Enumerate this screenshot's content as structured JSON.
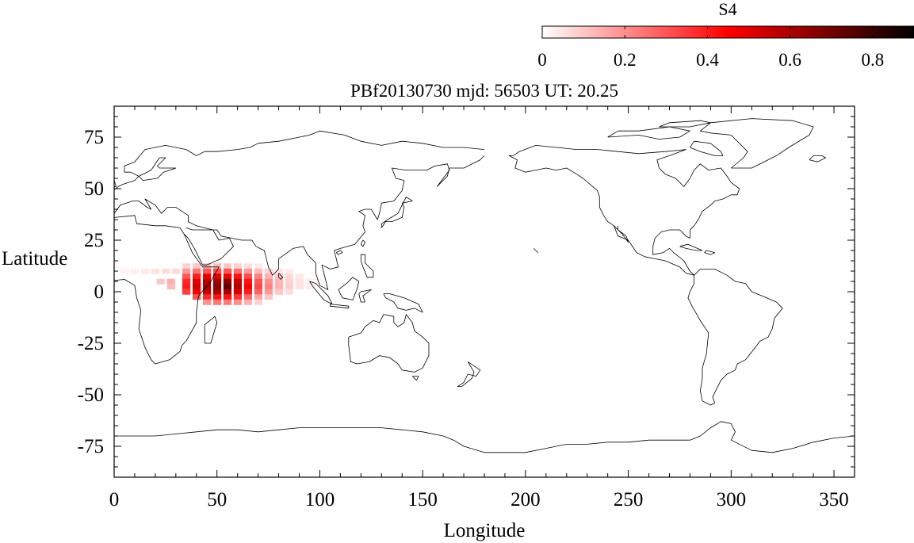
{
  "colorbar": {
    "label": "S4",
    "ticks": [
      "0",
      "0.2",
      "0.4",
      "0.6",
      "0.8"
    ],
    "tick_values": [
      0,
      0.2,
      0.4,
      0.6,
      0.8
    ],
    "range": [
      0,
      0.9
    ],
    "colors": [
      "#ffffff",
      "#ff0000",
      "#000000"
    ]
  },
  "plot": {
    "title": "PBf20130730  mjd: 56503  UT:  20.25",
    "xlabel": "Longitude",
    "ylabel": "Latitude",
    "coastline_color": "#000000"
  },
  "chart_data": {
    "type": "heatmap",
    "title": "PBf20130730  mjd: 56503  UT:  20.25",
    "xlabel": "Longitude",
    "ylabel": "Latitude",
    "xlim": [
      0,
      360
    ],
    "ylim": [
      -90,
      90
    ],
    "xticks": [
      0,
      50,
      100,
      150,
      200,
      250,
      300,
      350
    ],
    "xtick_labels": [
      "0",
      "50",
      "100",
      "150",
      "200",
      "250",
      "300",
      "350"
    ],
    "yticks": [
      75,
      50,
      25,
      0,
      -25,
      -50,
      -75
    ],
    "ytick_labels": [
      "75",
      "50",
      "25",
      "0",
      "-25",
      "-50",
      "-75"
    ],
    "colorbar_label": "S4",
    "cell_size_deg": [
      3.75,
      2.5
    ],
    "cells": [
      {
        "lon": 5,
        "lat": 10,
        "s4": 0.02
      },
      {
        "lon": 10,
        "lat": 10,
        "s4": 0.03
      },
      {
        "lon": 15,
        "lat": 10,
        "s4": 0.04
      },
      {
        "lon": 20,
        "lat": 10,
        "s4": 0.05
      },
      {
        "lon": 25,
        "lat": 10,
        "s4": 0.06
      },
      {
        "lon": 30,
        "lat": 10,
        "s4": 0.06
      },
      {
        "lon": 22.5,
        "lat": 5,
        "s4": 0.1
      },
      {
        "lon": 27.5,
        "lat": 5,
        "s4": 0.14
      },
      {
        "lon": 27.5,
        "lat": 2.5,
        "s4": 0.12
      },
      {
        "lon": 35,
        "lat": 12.5,
        "s4": 0.08
      },
      {
        "lon": 40,
        "lat": 12.5,
        "s4": 0.1
      },
      {
        "lon": 45,
        "lat": 12.5,
        "s4": 0.12
      },
      {
        "lon": 50,
        "lat": 12.5,
        "s4": 0.12
      },
      {
        "lon": 55,
        "lat": 12.5,
        "s4": 0.1
      },
      {
        "lon": 60,
        "lat": 12.5,
        "s4": 0.08
      },
      {
        "lon": 65,
        "lat": 12.5,
        "s4": 0.06
      },
      {
        "lon": 70,
        "lat": 12.5,
        "s4": 0.04
      },
      {
        "lon": 35,
        "lat": 10,
        "s4": 0.18
      },
      {
        "lon": 40,
        "lat": 10,
        "s4": 0.25
      },
      {
        "lon": 45,
        "lat": 10,
        "s4": 0.3
      },
      {
        "lon": 50,
        "lat": 10,
        "s4": 0.32
      },
      {
        "lon": 55,
        "lat": 10,
        "s4": 0.3
      },
      {
        "lon": 60,
        "lat": 10,
        "s4": 0.25
      },
      {
        "lon": 65,
        "lat": 10,
        "s4": 0.18
      },
      {
        "lon": 70,
        "lat": 10,
        "s4": 0.12
      },
      {
        "lon": 75,
        "lat": 10,
        "s4": 0.08
      },
      {
        "lon": 80,
        "lat": 10,
        "s4": 0.05
      },
      {
        "lon": 85,
        "lat": 10,
        "s4": 0.03
      },
      {
        "lon": 35,
        "lat": 7.5,
        "s4": 0.3
      },
      {
        "lon": 40,
        "lat": 7.5,
        "s4": 0.4
      },
      {
        "lon": 45,
        "lat": 7.5,
        "s4": 0.48
      },
      {
        "lon": 50,
        "lat": 7.5,
        "s4": 0.5
      },
      {
        "lon": 55,
        "lat": 7.5,
        "s4": 0.48
      },
      {
        "lon": 60,
        "lat": 7.5,
        "s4": 0.42
      },
      {
        "lon": 65,
        "lat": 7.5,
        "s4": 0.32
      },
      {
        "lon": 70,
        "lat": 7.5,
        "s4": 0.22
      },
      {
        "lon": 75,
        "lat": 7.5,
        "s4": 0.14
      },
      {
        "lon": 80,
        "lat": 7.5,
        "s4": 0.1
      },
      {
        "lon": 85,
        "lat": 7.5,
        "s4": 0.07
      },
      {
        "lon": 90,
        "lat": 7.5,
        "s4": 0.04
      },
      {
        "lon": 35,
        "lat": 5,
        "s4": 0.38
      },
      {
        "lon": 40,
        "lat": 5,
        "s4": 0.5
      },
      {
        "lon": 45,
        "lat": 5,
        "s4": 0.58
      },
      {
        "lon": 50,
        "lat": 5,
        "s4": 0.62
      },
      {
        "lon": 55,
        "lat": 5,
        "s4": 0.66
      },
      {
        "lon": 60,
        "lat": 5,
        "s4": 0.55
      },
      {
        "lon": 65,
        "lat": 5,
        "s4": 0.42
      },
      {
        "lon": 70,
        "lat": 5,
        "s4": 0.3
      },
      {
        "lon": 75,
        "lat": 5,
        "s4": 0.2
      },
      {
        "lon": 80,
        "lat": 5,
        "s4": 0.13
      },
      {
        "lon": 85,
        "lat": 5,
        "s4": 0.08
      },
      {
        "lon": 90,
        "lat": 5,
        "s4": 0.05
      },
      {
        "lon": 95,
        "lat": 5,
        "s4": 0.03
      },
      {
        "lon": 100,
        "lat": 5,
        "s4": 0.02
      },
      {
        "lon": 35,
        "lat": 2.5,
        "s4": 0.4
      },
      {
        "lon": 40,
        "lat": 2.5,
        "s4": 0.52
      },
      {
        "lon": 45,
        "lat": 2.5,
        "s4": 0.6
      },
      {
        "lon": 50,
        "lat": 2.5,
        "s4": 0.66
      },
      {
        "lon": 55,
        "lat": 2.5,
        "s4": 0.72
      },
      {
        "lon": 60,
        "lat": 2.5,
        "s4": 0.58
      },
      {
        "lon": 65,
        "lat": 2.5,
        "s4": 0.45
      },
      {
        "lon": 70,
        "lat": 2.5,
        "s4": 0.32
      },
      {
        "lon": 75,
        "lat": 2.5,
        "s4": 0.22
      },
      {
        "lon": 80,
        "lat": 2.5,
        "s4": 0.14
      },
      {
        "lon": 85,
        "lat": 2.5,
        "s4": 0.09
      },
      {
        "lon": 90,
        "lat": 2.5,
        "s4": 0.05
      },
      {
        "lon": 95,
        "lat": 2.5,
        "s4": 0.03
      },
      {
        "lon": 35,
        "lat": 0,
        "s4": 0.34
      },
      {
        "lon": 40,
        "lat": 0,
        "s4": 0.46
      },
      {
        "lon": 45,
        "lat": 0,
        "s4": 0.55
      },
      {
        "lon": 50,
        "lat": 0,
        "s4": 0.6
      },
      {
        "lon": 55,
        "lat": 0,
        "s4": 0.62
      },
      {
        "lon": 60,
        "lat": 0,
        "s4": 0.52
      },
      {
        "lon": 65,
        "lat": 0,
        "s4": 0.4
      },
      {
        "lon": 70,
        "lat": 0,
        "s4": 0.28
      },
      {
        "lon": 75,
        "lat": 0,
        "s4": 0.18
      },
      {
        "lon": 80,
        "lat": 0,
        "s4": 0.1
      },
      {
        "lon": 85,
        "lat": 0,
        "s4": 0.06
      },
      {
        "lon": 40,
        "lat": -2.5,
        "s4": 0.3
      },
      {
        "lon": 45,
        "lat": -2.5,
        "s4": 0.38
      },
      {
        "lon": 50,
        "lat": -2.5,
        "s4": 0.42
      },
      {
        "lon": 55,
        "lat": -2.5,
        "s4": 0.42
      },
      {
        "lon": 60,
        "lat": -2.5,
        "s4": 0.36
      },
      {
        "lon": 65,
        "lat": -2.5,
        "s4": 0.26
      },
      {
        "lon": 70,
        "lat": -2.5,
        "s4": 0.16
      },
      {
        "lon": 75,
        "lat": -2.5,
        "s4": 0.1
      },
      {
        "lon": 45,
        "lat": -5,
        "s4": 0.2
      },
      {
        "lon": 50,
        "lat": -5,
        "s4": 0.24
      },
      {
        "lon": 55,
        "lat": -5,
        "s4": 0.24
      },
      {
        "lon": 60,
        "lat": -5,
        "s4": 0.2
      },
      {
        "lon": 65,
        "lat": -5,
        "s4": 0.14
      },
      {
        "lon": 70,
        "lat": -5,
        "s4": 0.08
      }
    ]
  }
}
